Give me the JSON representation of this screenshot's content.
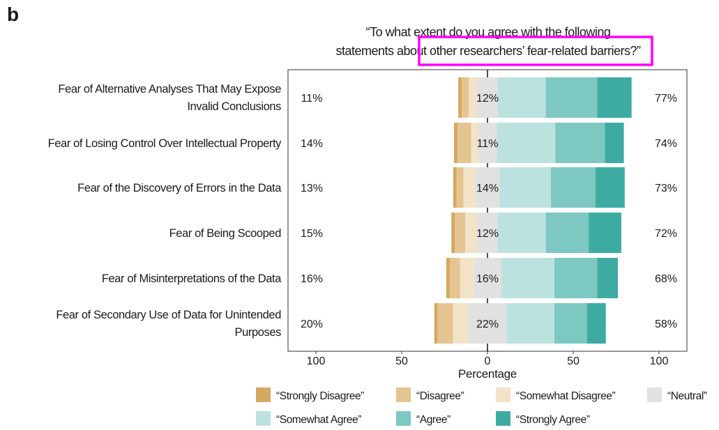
{
  "panel_label": "b",
  "chart_data": {
    "type": "bar",
    "orientation": "horizontal-diverging-stacked",
    "title_lines": [
      "“To what extent do you agree with the following",
      "statements about other researchers’ fear-related barriers?”"
    ],
    "highlighted_phrase": "other researchers’ fear-related barriers?",
    "highlight_color": "#ff00ff",
    "xlabel": "Percentage",
    "xlim": [
      -108,
      116
    ],
    "xticks": [
      -100,
      -50,
      0,
      50,
      100
    ],
    "xtick_labels": [
      "100",
      "50",
      "0",
      "50",
      "100"
    ],
    "grid": false,
    "legend_position": "bottom",
    "categories": [
      [
        "Fear of Alternative Analyses That May Expose",
        "Invalid Conclusions"
      ],
      [
        "Fear of Losing Control Over Intellectual Property"
      ],
      [
        "Fear of the Discovery of Errors in the Data"
      ],
      [
        "Fear of Being Scooped"
      ],
      [
        "Fear of Misinterpretations of the Data"
      ],
      [
        "Fear of Secondary Use of Data for Unintended",
        "Purposes"
      ]
    ],
    "series": [
      {
        "name": "“Strongly Disagree”",
        "color": "#d4a85f",
        "values": [
          2,
          2,
          2,
          2,
          2,
          2
        ]
      },
      {
        "name": "“Disagree”",
        "color": "#e4c491",
        "values": [
          4,
          8,
          4,
          6,
          6,
          9
        ]
      },
      {
        "name": "“Somewhat Disagree”",
        "color": "#f2e3c6",
        "values": [
          5,
          4,
          7,
          7,
          8,
          9
        ]
      },
      {
        "name": "“Neutral”",
        "color": "#e1e1e0",
        "values": [
          12,
          11,
          14,
          12,
          16,
          22
        ]
      },
      {
        "name": "“Somewhat Agree”",
        "color": "#bce2df",
        "values": [
          28,
          34,
          30,
          28,
          31,
          28
        ]
      },
      {
        "name": "“Agree”",
        "color": "#7dc8c1",
        "values": [
          30,
          29,
          26,
          25,
          25,
          19
        ]
      },
      {
        "name": "“Strongly Agree”",
        "color": "#3daba2",
        "values": [
          20,
          11,
          17,
          19,
          12,
          11
        ]
      }
    ],
    "left_labels": [
      "11%",
      "14%",
      "13%",
      "15%",
      "16%",
      "20%"
    ],
    "neutral_labels": [
      "12%",
      "11%",
      "14%",
      "12%",
      "16%",
      "22%"
    ],
    "right_labels": [
      "77%",
      "74%",
      "73%",
      "72%",
      "68%",
      "58%"
    ]
  }
}
